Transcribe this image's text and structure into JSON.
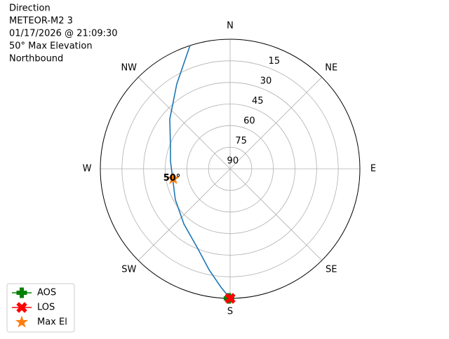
{
  "chart_data": {
    "type": "polar",
    "title_lines": [
      "Direction",
      "METEOR-M2 3",
      "01/17/2026 @ 21:09:30",
      "50° Max Elevation",
      "Northbound"
    ],
    "rlim": [
      90,
      0
    ],
    "rticks": [
      90,
      75,
      60,
      45,
      30,
      15
    ],
    "thetaticks": [
      {
        "value": 0,
        "label": "N"
      },
      {
        "value": 45,
        "label": "NE"
      },
      {
        "value": 90,
        "label": "E"
      },
      {
        "value": 135,
        "label": "SE"
      },
      {
        "value": 180,
        "label": "S"
      },
      {
        "value": 225,
        "label": "SW"
      },
      {
        "value": 270,
        "label": "W"
      },
      {
        "value": 315,
        "label": "NW"
      }
    ],
    "grid": true,
    "track": {
      "color": "#1f77b4",
      "azimuth": [
        342,
        327.9,
        309.5,
        290,
        277.4,
        260,
        240.6,
        219.9,
        202,
        191.8,
        184.4,
        180
      ],
      "elevation": [
        0,
        20.4,
        35.8,
        46,
        48.3,
        49.6,
        46.4,
        40,
        30.2,
        18.5,
        7.5,
        0
      ]
    },
    "series": [
      {
        "name": "AOS",
        "color": "#008000",
        "marker": "plus",
        "azimuth": [
          180.5
        ],
        "elevation": [
          0
        ]
      },
      {
        "name": "LOS",
        "color": "#ff0000",
        "marker": "x",
        "azimuth": [
          180
        ],
        "elevation": [
          0
        ]
      },
      {
        "name": "Max El",
        "color": "#ff7f0e",
        "marker": "star",
        "azimuth": [
          260
        ],
        "elevation": [
          50
        ],
        "value_labels": [
          "50°"
        ]
      }
    ],
    "legend": "lower left"
  }
}
